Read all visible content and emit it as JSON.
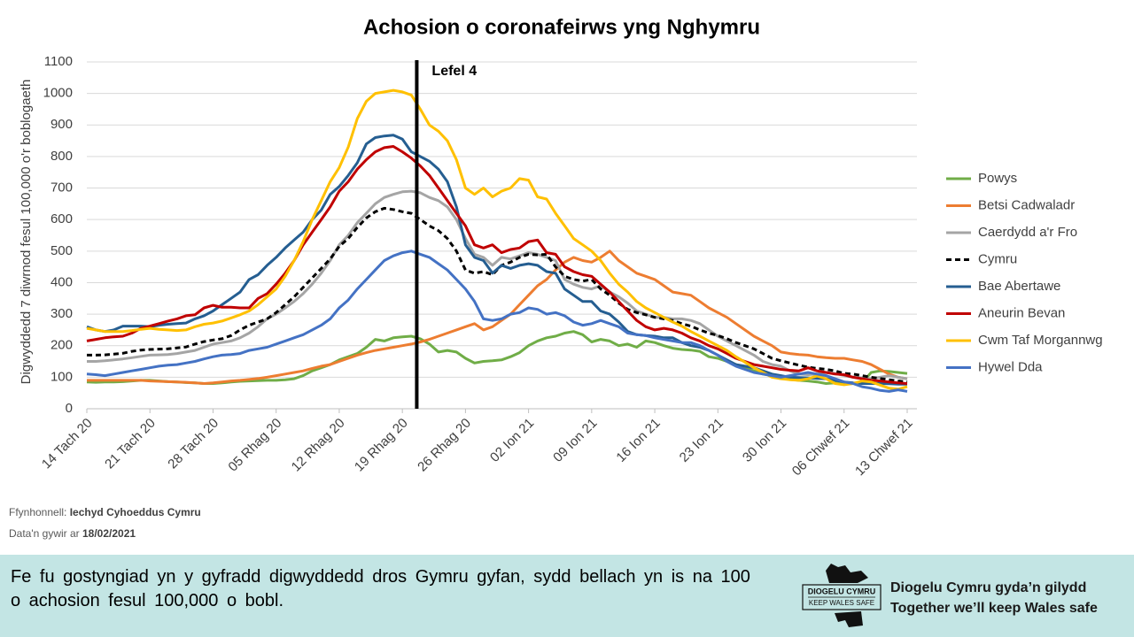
{
  "chart_data": {
    "type": "line",
    "title": "Achosion o coronafeirws yng Nghymru",
    "y_label": "Digwyddedd 7 diwrnod fesul 100,000 o'r boblogaeth",
    "annotation": "Lefel 4",
    "ylim": [
      0,
      1100
    ],
    "yticks": [
      0,
      100,
      200,
      300,
      400,
      500,
      600,
      700,
      800,
      900,
      1000,
      1100
    ],
    "grid": true,
    "legend": "right",
    "categories": [
      "14 Tach 20",
      null,
      null,
      null,
      null,
      null,
      null,
      "21 Tach 20",
      null,
      null,
      null,
      null,
      null,
      null,
      "28 Tach 20",
      null,
      null,
      null,
      null,
      null,
      null,
      "05 Rhag 20",
      null,
      null,
      null,
      null,
      null,
      null,
      "12 Rhag 20",
      null,
      null,
      null,
      null,
      null,
      null,
      "19 Rhag 20",
      null,
      null,
      null,
      null,
      null,
      null,
      "26 Rhag 20",
      null,
      null,
      null,
      null,
      null,
      null,
      "02 Ion 21",
      null,
      null,
      null,
      null,
      null,
      null,
      "09 Ion 21",
      null,
      null,
      null,
      null,
      null,
      null,
      "16 Ion 21",
      null,
      null,
      null,
      null,
      null,
      null,
      "23 Ion 21",
      null,
      null,
      null,
      null,
      null,
      null,
      "30 Ion 21",
      null,
      null,
      null,
      null,
      null,
      null,
      "06 Chwef 21",
      null,
      null,
      null,
      null,
      null,
      null,
      "13 Chwef 21"
    ],
    "series": [
      {
        "name": "Powys",
        "color": "#70ad47",
        "values": [
          85,
          84,
          85,
          85,
          86,
          88,
          90,
          90,
          88,
          86,
          85,
          83,
          82,
          80,
          80,
          82,
          85,
          87,
          88,
          89,
          90,
          90,
          92,
          95,
          105,
          120,
          130,
          140,
          155,
          165,
          175,
          195,
          220,
          215,
          225,
          228,
          230,
          222,
          205,
          180,
          185,
          180,
          160,
          145,
          150,
          152,
          155,
          165,
          178,
          200,
          215,
          225,
          230,
          240,
          245,
          235,
          212,
          220,
          215,
          200,
          205,
          195,
          215,
          210,
          200,
          192,
          188,
          186,
          182,
          165,
          160,
          150,
          140,
          130,
          120,
          110,
          105,
          97,
          93,
          90,
          88,
          85,
          80,
          82,
          78,
          80,
          82,
          115,
          120,
          118,
          115,
          112
        ]
      },
      {
        "name": "Betsi Cadwaladr",
        "color": "#ed7d31",
        "values": [
          90,
          90,
          90,
          90,
          90,
          90,
          90,
          88,
          87,
          86,
          85,
          84,
          82,
          80,
          82,
          85,
          88,
          90,
          93,
          96,
          100,
          105,
          110,
          115,
          120,
          128,
          135,
          140,
          150,
          160,
          170,
          178,
          185,
          190,
          195,
          200,
          205,
          212,
          220,
          230,
          240,
          250,
          260,
          270,
          250,
          260,
          280,
          300,
          330,
          360,
          390,
          410,
          440,
          465,
          480,
          470,
          465,
          480,
          500,
          470,
          450,
          430,
          420,
          410,
          390,
          370,
          365,
          360,
          340,
          320,
          305,
          290,
          270,
          250,
          230,
          215,
          200,
          180,
          175,
          172,
          170,
          165,
          162,
          160,
          160,
          155,
          150,
          140,
          125,
          110,
          100,
          95
        ]
      },
      {
        "name": "Caerdydd a'r Fro",
        "color": "#a5a5a5",
        "values": [
          150,
          150,
          152,
          155,
          158,
          162,
          166,
          170,
          171,
          172,
          175,
          180,
          185,
          195,
          205,
          210,
          215,
          225,
          240,
          260,
          285,
          300,
          320,
          340,
          365,
          395,
          430,
          470,
          520,
          550,
          590,
          620,
          650,
          670,
          680,
          688,
          690,
          685,
          670,
          660,
          640,
          600,
          540,
          490,
          480,
          455,
          480,
          475,
          485,
          495,
          490,
          480,
          470,
          410,
          395,
          385,
          380,
          390,
          370,
          355,
          335,
          310,
          300,
          290,
          290,
          285,
          285,
          280,
          270,
          250,
          230,
          215,
          200,
          185,
          170,
          150,
          140,
          135,
          120,
          110,
          108,
          110,
          115,
          112,
          105,
          100,
          98,
          95,
          100,
          105,
          100,
          95
        ]
      },
      {
        "name": "Cymru",
        "color": "#000000",
        "dashed": true,
        "values": [
          170,
          170,
          171,
          173,
          176,
          182,
          186,
          188,
          189,
          190,
          193,
          196,
          205,
          213,
          218,
          222,
          232,
          250,
          265,
          275,
          285,
          305,
          330,
          355,
          385,
          415,
          445,
          475,
          515,
          540,
          575,
          605,
          625,
          636,
          632,
          625,
          620,
          600,
          580,
          565,
          540,
          500,
          440,
          430,
          435,
          425,
          455,
          465,
          480,
          490,
          488,
          490,
          450,
          420,
          410,
          405,
          410,
          380,
          360,
          335,
          315,
          305,
          298,
          290,
          285,
          280,
          270,
          262,
          250,
          240,
          232,
          222,
          210,
          200,
          190,
          175,
          160,
          152,
          145,
          138,
          132,
          128,
          125,
          120,
          112,
          110,
          105,
          100,
          96,
          92,
          88,
          85
        ]
      },
      {
        "name": "Bae Abertawe",
        "color": "#255e91",
        "values": [
          260,
          250,
          245,
          250,
          262,
          262,
          262,
          260,
          265,
          268,
          270,
          272,
          285,
          295,
          310,
          330,
          350,
          370,
          410,
          425,
          455,
          480,
          510,
          535,
          560,
          600,
          630,
          680,
          705,
          740,
          780,
          840,
          860,
          865,
          868,
          855,
          815,
          800,
          785,
          760,
          720,
          640,
          520,
          480,
          470,
          430,
          455,
          445,
          455,
          460,
          455,
          435,
          430,
          380,
          360,
          340,
          340,
          310,
          300,
          275,
          245,
          235,
          232,
          230,
          225,
          225,
          210,
          200,
          195,
          185,
          170,
          155,
          140,
          135,
          130,
          120,
          110,
          105,
          100,
          99,
          98,
          96,
          95,
          90,
          85,
          82,
          80,
          80,
          80,
          79,
          78,
          78
        ]
      },
      {
        "name": "Aneurin Bevan",
        "color": "#c00000",
        "values": [
          215,
          220,
          225,
          228,
          230,
          240,
          255,
          262,
          270,
          278,
          285,
          295,
          298,
          320,
          328,
          322,
          322,
          320,
          320,
          350,
          365,
          395,
          430,
          470,
          520,
          560,
          600,
          640,
          690,
          720,
          760,
          790,
          815,
          828,
          832,
          815,
          795,
          770,
          740,
          700,
          660,
          620,
          580,
          520,
          510,
          520,
          495,
          505,
          510,
          530,
          535,
          495,
          490,
          450,
          435,
          425,
          420,
          395,
          370,
          340,
          310,
          280,
          260,
          250,
          255,
          250,
          240,
          225,
          215,
          200,
          190,
          175,
          160,
          150,
          140,
          135,
          130,
          125,
          122,
          120,
          130,
          120,
          115,
          110,
          108,
          100,
          95,
          90,
          88,
          85,
          82,
          80
        ]
      },
      {
        "name": "Cwm Taf Morgannwg",
        "color": "#ffc000",
        "values": [
          255,
          250,
          245,
          245,
          245,
          248,
          252,
          255,
          252,
          250,
          248,
          250,
          260,
          268,
          272,
          278,
          288,
          298,
          310,
          330,
          355,
          380,
          420,
          470,
          530,
          600,
          660,
          720,
          765,
          830,
          920,
          975,
          1000,
          1005,
          1010,
          1005,
          995,
          950,
          900,
          880,
          850,
          790,
          700,
          680,
          700,
          672,
          690,
          700,
          730,
          725,
          672,
          665,
          620,
          580,
          540,
          520,
          500,
          470,
          430,
          395,
          370,
          340,
          320,
          305,
          290,
          275,
          262,
          245,
          230,
          215,
          200,
          185,
          165,
          148,
          130,
          115,
          100,
          95,
          92,
          90,
          95,
          104,
          95,
          80,
          76,
          80,
          88,
          85,
          75,
          65,
          62,
          70
        ]
      },
      {
        "name": "Hywel Dda",
        "color": "#4472c4",
        "values": [
          110,
          108,
          105,
          110,
          115,
          120,
          125,
          130,
          135,
          138,
          140,
          145,
          150,
          158,
          165,
          170,
          172,
          175,
          185,
          190,
          195,
          205,
          215,
          225,
          235,
          250,
          265,
          285,
          320,
          345,
          380,
          410,
          440,
          470,
          485,
          495,
          500,
          490,
          480,
          460,
          440,
          410,
          380,
          340,
          285,
          280,
          285,
          300,
          305,
          320,
          315,
          300,
          305,
          295,
          275,
          265,
          270,
          280,
          270,
          260,
          240,
          235,
          232,
          225,
          220,
          215,
          210,
          210,
          200,
          185,
          170,
          150,
          135,
          125,
          115,
          110,
          105,
          100,
          105,
          110,
          115,
          110,
          105,
          95,
          85,
          80,
          70,
          65,
          58,
          55,
          60,
          55
        ]
      }
    ]
  },
  "source": {
    "label": "Ffynhonnell:",
    "value": "Iechyd Cyhoeddus Cymru"
  },
  "date": {
    "label": "Data'n gywir ar",
    "value": "18/02/2021"
  },
  "banner": {
    "message": "Fe fu gostyngiad yn y gyfradd digwyddedd dros Gymru gyfan, sydd bellach yn is na 100 o achosion fesul 100,000 o bobl.",
    "logo_cy": "DIOGELU CYMRU",
    "logo_en": "KEEP WALES SAFE",
    "tagline_cy": "Diogelu Cymru gyda’n gilydd",
    "tagline_en": "Together we’ll keep Wales safe"
  }
}
